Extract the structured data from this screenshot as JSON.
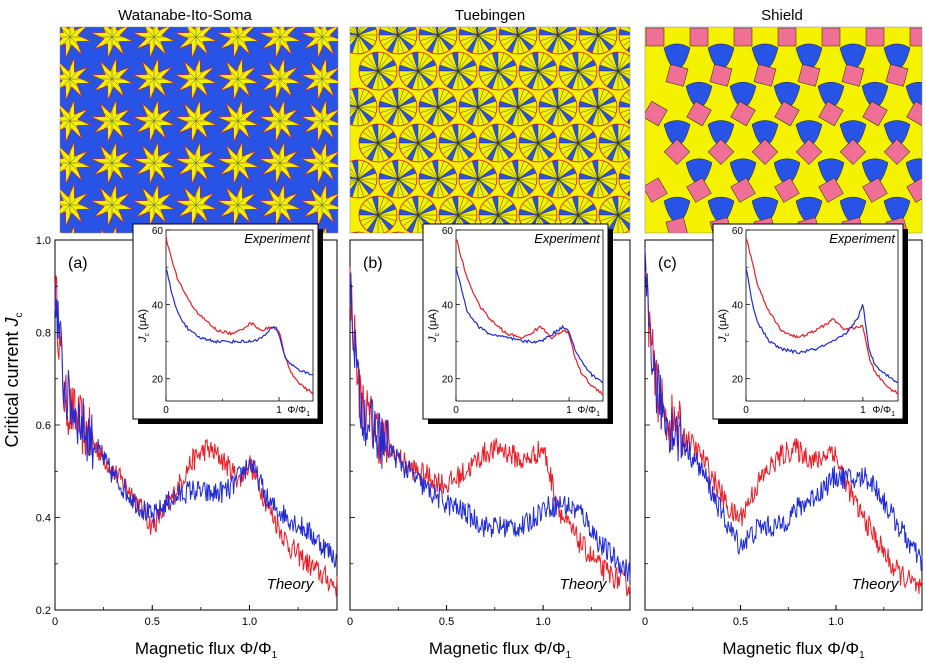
{
  "figure": {
    "y_axis_label": "Critical current",
    "y_axis_symbol": "J",
    "y_axis_subscript": "c",
    "x_axis_label": "Magnetic flux",
    "x_axis_symbol": "Φ/Φ",
    "x_axis_subscript": "1",
    "theory_label": "Theory",
    "inset_title": "Experiment",
    "inset_y_label": "J",
    "inset_y_sub": "c",
    "inset_y_unit": "(μA)",
    "inset_x_label": "Φ/Φ",
    "inset_x_sub": "1"
  },
  "colors": {
    "series_red": "#ee1c25",
    "series_blue": "#1f2bd6",
    "tile_yellow": "#f5f200",
    "tile_blue": "#2753e6",
    "tile_pink": "#f06f94"
  },
  "panels": [
    {
      "tiling_title": "Watanabe-Ito-Soma",
      "label": "(a)"
    },
    {
      "tiling_title": "Tuebingen",
      "label": "(b)"
    },
    {
      "tiling_title": "Shield",
      "label": "(c)"
    }
  ],
  "chart_data": [
    {
      "type": "line",
      "title": "Watanabe-Ito-Soma (a) Theory",
      "xlabel": "Magnetic flux Φ/Φ1",
      "ylabel": "Critical current Jc",
      "xlim": [
        0,
        1.45
      ],
      "ylim": [
        0.2,
        1.0
      ],
      "xticks": [
        0,
        0.5,
        1.0
      ],
      "yticks": [
        0.2,
        0.4,
        0.6,
        0.8,
        1.0
      ],
      "series": [
        {
          "name": "red",
          "x": [
            0,
            0.05,
            0.1,
            0.2,
            0.3,
            0.4,
            0.5,
            0.6,
            0.7,
            0.78,
            0.85,
            0.95,
            1.0,
            1.1,
            1.2,
            1.3,
            1.45
          ],
          "y": [
            0.9,
            0.65,
            0.62,
            0.56,
            0.5,
            0.45,
            0.38,
            0.44,
            0.52,
            0.55,
            0.53,
            0.48,
            0.52,
            0.42,
            0.34,
            0.3,
            0.25
          ]
        },
        {
          "name": "blue",
          "x": [
            0,
            0.05,
            0.1,
            0.2,
            0.3,
            0.4,
            0.5,
            0.6,
            0.7,
            0.8,
            0.9,
            1.0,
            1.05,
            1.1,
            1.2,
            1.3,
            1.45
          ],
          "y": [
            0.9,
            0.67,
            0.63,
            0.56,
            0.49,
            0.44,
            0.4,
            0.44,
            0.46,
            0.45,
            0.46,
            0.52,
            0.48,
            0.43,
            0.4,
            0.37,
            0.31
          ]
        }
      ]
    },
    {
      "type": "line",
      "title": "Tuebingen (b) Theory",
      "xlabel": "Magnetic flux Φ/Φ1",
      "ylabel": "",
      "xlim": [
        0,
        1.45
      ],
      "ylim": [
        0.2,
        1.0
      ],
      "xticks": [
        0,
        0.5,
        1.0
      ],
      "yticks": [],
      "series": [
        {
          "name": "red",
          "x": [
            0,
            0.05,
            0.1,
            0.2,
            0.3,
            0.4,
            0.5,
            0.6,
            0.7,
            0.78,
            0.9,
            1.0,
            1.05,
            1.1,
            1.2,
            1.3,
            1.45
          ],
          "y": [
            0.9,
            0.66,
            0.61,
            0.55,
            0.51,
            0.49,
            0.47,
            0.5,
            0.54,
            0.55,
            0.52,
            0.55,
            0.47,
            0.4,
            0.34,
            0.29,
            0.25
          ]
        },
        {
          "name": "blue",
          "x": [
            0,
            0.05,
            0.1,
            0.2,
            0.3,
            0.4,
            0.5,
            0.6,
            0.7,
            0.8,
            0.9,
            1.0,
            1.1,
            1.2,
            1.3,
            1.45
          ],
          "y": [
            0.9,
            0.65,
            0.6,
            0.55,
            0.5,
            0.46,
            0.43,
            0.41,
            0.38,
            0.38,
            0.38,
            0.42,
            0.43,
            0.41,
            0.34,
            0.28
          ]
        }
      ]
    },
    {
      "type": "line",
      "title": "Shield (c) Theory",
      "xlabel": "Magnetic flux Φ/Φ1",
      "ylabel": "",
      "xlim": [
        0,
        1.45
      ],
      "ylim": [
        0.2,
        1.0
      ],
      "xticks": [
        0,
        0.5,
        1.0
      ],
      "yticks": [],
      "series": [
        {
          "name": "red",
          "x": [
            0,
            0.05,
            0.1,
            0.2,
            0.3,
            0.4,
            0.45,
            0.5,
            0.6,
            0.7,
            0.78,
            0.9,
            0.98,
            1.05,
            1.1,
            1.2,
            1.3,
            1.45
          ],
          "y": [
            0.92,
            0.7,
            0.62,
            0.58,
            0.53,
            0.45,
            0.41,
            0.4,
            0.48,
            0.53,
            0.55,
            0.52,
            0.55,
            0.48,
            0.43,
            0.36,
            0.29,
            0.24
          ]
        },
        {
          "name": "blue",
          "x": [
            0,
            0.05,
            0.1,
            0.2,
            0.3,
            0.4,
            0.45,
            0.5,
            0.6,
            0.7,
            0.8,
            0.9,
            1.0,
            1.1,
            1.15,
            1.2,
            1.3,
            1.45
          ],
          "y": [
            0.92,
            0.7,
            0.62,
            0.56,
            0.5,
            0.41,
            0.37,
            0.34,
            0.38,
            0.38,
            0.42,
            0.45,
            0.49,
            0.48,
            0.49,
            0.47,
            0.4,
            0.3
          ]
        }
      ]
    },
    {
      "type": "line",
      "title": "Experiment (a)",
      "xlabel": "Φ/Φ1",
      "ylabel": "Jc (μA)",
      "xlim": [
        0,
        1.3
      ],
      "ylim": [
        14,
        60
      ],
      "xticks": [
        0,
        1
      ],
      "yticks": [
        20,
        40,
        60
      ],
      "series": [
        {
          "name": "red",
          "x": [
            0,
            0.05,
            0.1,
            0.2,
            0.3,
            0.45,
            0.6,
            0.75,
            0.85,
            0.95,
            1.0,
            1.05,
            1.1,
            1.2,
            1.3
          ],
          "y": [
            58,
            52,
            47,
            41,
            37,
            33,
            32,
            35,
            33,
            34,
            33,
            26,
            22,
            18,
            16
          ]
        },
        {
          "name": "blue",
          "x": [
            0,
            0.05,
            0.1,
            0.2,
            0.3,
            0.45,
            0.6,
            0.75,
            0.85,
            0.95,
            1.0,
            1.05,
            1.1,
            1.2,
            1.3
          ],
          "y": [
            50,
            43,
            38,
            33,
            31,
            30,
            30,
            30,
            31,
            34,
            32,
            26,
            24,
            22,
            21
          ]
        }
      ]
    },
    {
      "type": "line",
      "title": "Experiment (b)",
      "xlabel": "Φ/Φ1",
      "ylabel": "Jc (μA)",
      "xlim": [
        0,
        1.3
      ],
      "ylim": [
        14,
        60
      ],
      "xticks": [
        0,
        1
      ],
      "yticks": [
        20,
        40,
        60
      ],
      "series": [
        {
          "name": "red",
          "x": [
            0,
            0.05,
            0.1,
            0.2,
            0.3,
            0.45,
            0.6,
            0.75,
            0.85,
            0.95,
            1.0,
            1.05,
            1.1,
            1.2,
            1.3
          ],
          "y": [
            58,
            52,
            47,
            40,
            36,
            32,
            31,
            34,
            31,
            33,
            32,
            26,
            22,
            18,
            16
          ]
        },
        {
          "name": "blue",
          "x": [
            0,
            0.05,
            0.1,
            0.2,
            0.3,
            0.45,
            0.6,
            0.75,
            0.85,
            0.95,
            1.0,
            1.05,
            1.1,
            1.2,
            1.3
          ],
          "y": [
            50,
            44,
            38,
            34,
            32,
            31,
            30,
            30,
            32,
            34,
            33,
            28,
            25,
            21,
            19
          ]
        }
      ]
    },
    {
      "type": "line",
      "title": "Experiment (c)",
      "xlabel": "Φ/Φ1",
      "ylabel": "Jc (μA)",
      "xlim": [
        0,
        1.3
      ],
      "ylim": [
        14,
        60
      ],
      "xticks": [
        0,
        1
      ],
      "yticks": [
        20,
        40,
        60
      ],
      "series": [
        {
          "name": "red",
          "x": [
            0,
            0.05,
            0.1,
            0.2,
            0.3,
            0.45,
            0.6,
            0.75,
            0.85,
            0.95,
            1.0,
            1.05,
            1.1,
            1.2,
            1.3
          ],
          "y": [
            58,
            52,
            45,
            38,
            33,
            31,
            33,
            36,
            33,
            34,
            34,
            26,
            22,
            18,
            16
          ]
        },
        {
          "name": "blue",
          "x": [
            0,
            0.05,
            0.1,
            0.2,
            0.3,
            0.45,
            0.6,
            0.75,
            0.85,
            0.95,
            1.0,
            1.05,
            1.1,
            1.2,
            1.3
          ],
          "y": [
            50,
            41,
            35,
            30,
            28,
            27,
            28,
            30,
            32,
            36,
            40,
            28,
            24,
            21,
            19
          ]
        }
      ]
    }
  ]
}
